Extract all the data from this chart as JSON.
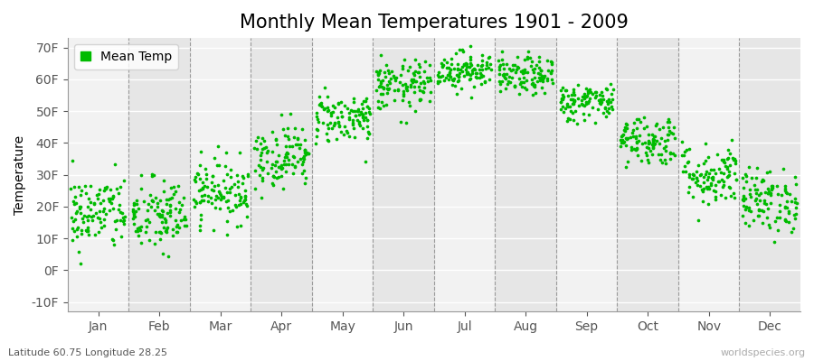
{
  "title": "Monthly Mean Temperatures 1901 - 2009",
  "ylabel": "Temperature",
  "xlabel_labels": [
    "Jan",
    "Feb",
    "Mar",
    "Apr",
    "May",
    "Jun",
    "Jul",
    "Aug",
    "Sep",
    "Oct",
    "Nov",
    "Dec"
  ],
  "ytick_labels": [
    "-10F",
    "0F",
    "10F",
    "20F",
    "30F",
    "40F",
    "50F",
    "60F",
    "70F"
  ],
  "ytick_values": [
    -10,
    0,
    10,
    20,
    30,
    40,
    50,
    60,
    70
  ],
  "ylim": [
    -13,
    73
  ],
  "dot_color": "#00bb00",
  "bg_color": "#ffffff",
  "plot_bg_color": "#f2f2f2",
  "alt_band_color": "#e6e6e6",
  "legend_label": "Mean Temp",
  "footer_left": "Latitude 60.75 Longitude 28.25",
  "footer_right": "worldspecies.org",
  "title_fontsize": 15,
  "axis_fontsize": 10,
  "num_years": 109,
  "seed": 42,
  "monthly_mean_F": [
    18,
    17,
    25,
    36,
    48,
    58,
    63,
    61,
    53,
    41,
    30,
    22
  ],
  "monthly_std_F": [
    6,
    6,
    5,
    5,
    4,
    4,
    3,
    3,
    3,
    4,
    5,
    5
  ]
}
